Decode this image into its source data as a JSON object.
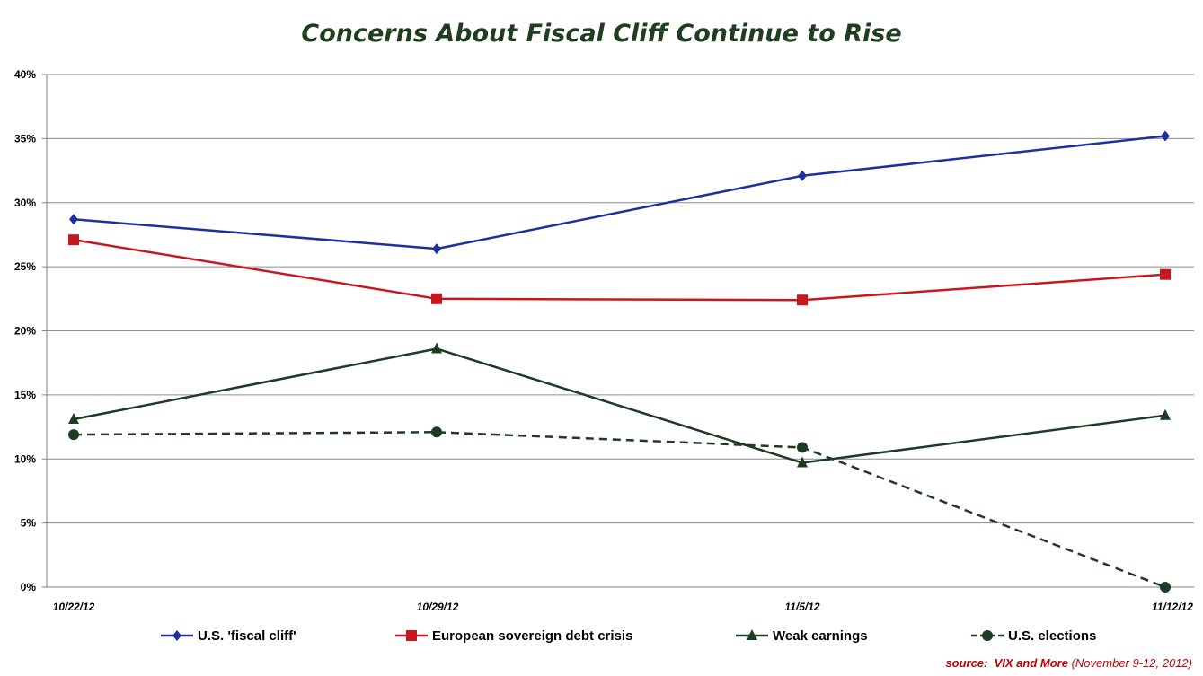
{
  "chart_data": {
    "type": "line",
    "title": "Concerns About Fiscal Cliff Continue to Rise",
    "categories": [
      "10/22/12",
      "10/29/12",
      "11/5/12",
      "11/12/12"
    ],
    "y_ticks": [
      "0%",
      "5%",
      "10%",
      "15%",
      "20%",
      "25%",
      "30%",
      "35%",
      "40%"
    ],
    "ylim": [
      0,
      40
    ],
    "grid": true,
    "legend_position": "bottom",
    "series": [
      {
        "name": "U.S. 'fiscal cliff'",
        "values": [
          28.7,
          26.4,
          32.1,
          35.2
        ],
        "color": "#1f2fa0",
        "marker": "diamond",
        "dash": false
      },
      {
        "name": "European sovereign debt crisis",
        "values": [
          27.1,
          22.5,
          22.4,
          24.4
        ],
        "color": "#c8171e",
        "marker": "square",
        "dash": false
      },
      {
        "name": "Weak earnings",
        "values": [
          13.1,
          18.6,
          9.7,
          13.4
        ],
        "color": "#1e3b23",
        "marker": "triangle",
        "dash": false
      },
      {
        "name": "U.S. elections",
        "values": [
          11.9,
          12.1,
          10.9,
          0.0
        ],
        "color": "#1e3b23",
        "marker": "circle",
        "dash": true
      }
    ]
  },
  "source": {
    "label": "source:",
    "name": "VIX and More",
    "detail": "(November 9-12, 2012)"
  }
}
